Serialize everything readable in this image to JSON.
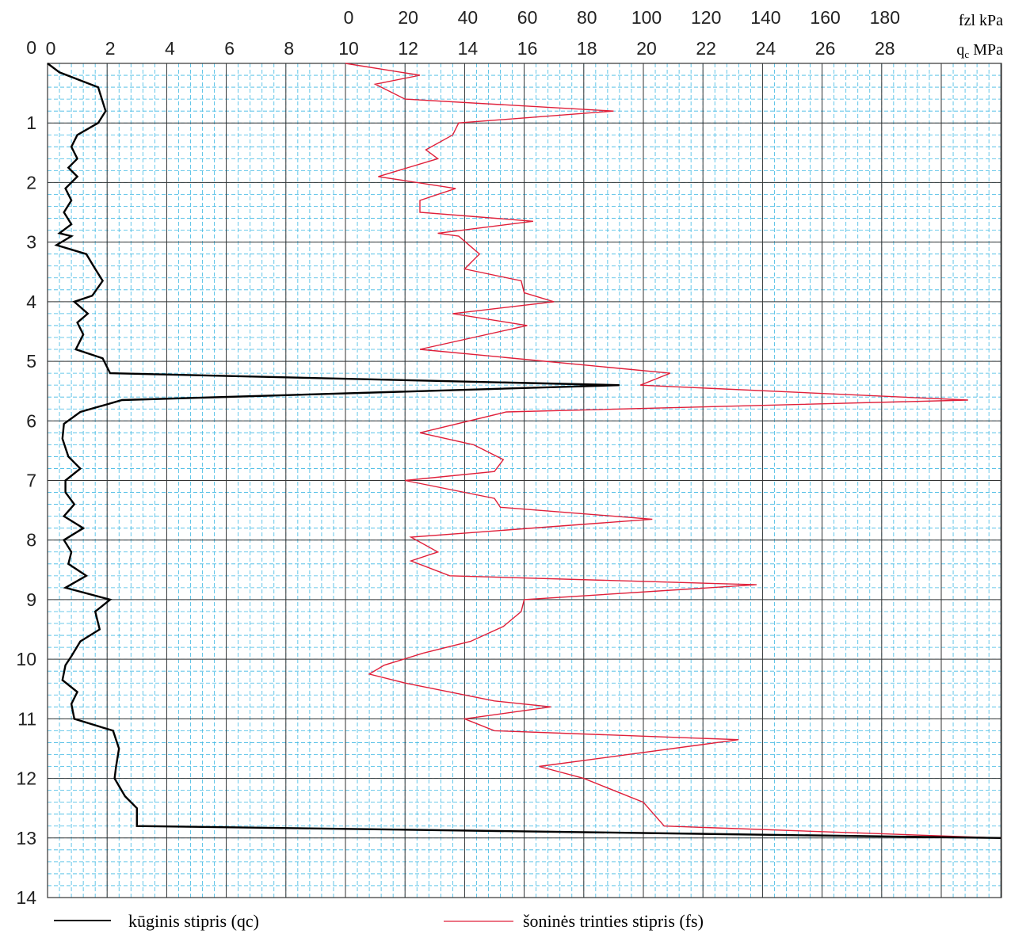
{
  "chart_data": {
    "type": "line",
    "units": {
      "fs": "fzl kPa",
      "qc_main": "q",
      "qc_sub": "c",
      "qc_tail": " MPa"
    },
    "axes": {
      "depth": {
        "ticks": [
          "0",
          "1",
          "2",
          "3",
          "4",
          "5",
          "6",
          "7",
          "8",
          "9",
          "10",
          "11",
          "12",
          "13",
          "14"
        ],
        "range": [
          0,
          14
        ]
      },
      "qc": {
        "ticks": [
          "0",
          "2",
          "4",
          "6",
          "8",
          "10",
          "12",
          "14",
          "16",
          "18",
          "20",
          "22",
          "24",
          "26",
          "28"
        ],
        "range": [
          0,
          32
        ]
      },
      "fs": {
        "ticks": [
          "0",
          "20",
          "40",
          "60",
          "80",
          "100",
          "120",
          "140",
          "160",
          "180"
        ],
        "range": [
          0,
          220
        ],
        "offset_in_qc": 10
      }
    },
    "grid": true,
    "series": [
      {
        "name": "kūginis stipris (qc)",
        "axis": "qc",
        "color": "#000000",
        "points": [
          [
            0.0,
            0.0
          ],
          [
            0.4,
            0.15
          ],
          [
            1.7,
            0.4
          ],
          [
            1.95,
            0.8
          ],
          [
            1.7,
            1.0
          ],
          [
            1.0,
            1.2
          ],
          [
            0.8,
            1.4
          ],
          [
            1.0,
            1.6
          ],
          [
            0.7,
            1.75
          ],
          [
            1.0,
            1.9
          ],
          [
            0.6,
            2.1
          ],
          [
            0.8,
            2.3
          ],
          [
            0.55,
            2.5
          ],
          [
            0.8,
            2.7
          ],
          [
            0.4,
            2.85
          ],
          [
            0.8,
            2.9
          ],
          [
            0.3,
            3.05
          ],
          [
            1.3,
            3.2
          ],
          [
            1.6,
            3.45
          ],
          [
            1.85,
            3.65
          ],
          [
            1.5,
            3.9
          ],
          [
            0.9,
            4.0
          ],
          [
            1.35,
            4.2
          ],
          [
            1.0,
            4.35
          ],
          [
            1.2,
            4.55
          ],
          [
            0.95,
            4.8
          ],
          [
            1.85,
            4.95
          ],
          [
            2.1,
            5.2
          ],
          [
            19.2,
            5.4
          ],
          [
            2.5,
            5.65
          ],
          [
            1.1,
            5.85
          ],
          [
            0.55,
            6.05
          ],
          [
            0.5,
            6.3
          ],
          [
            0.7,
            6.6
          ],
          [
            1.1,
            6.8
          ],
          [
            0.6,
            7.0
          ],
          [
            0.6,
            7.2
          ],
          [
            0.9,
            7.4
          ],
          [
            0.55,
            7.6
          ],
          [
            1.2,
            7.8
          ],
          [
            0.55,
            8.0
          ],
          [
            0.8,
            8.2
          ],
          [
            0.7,
            8.4
          ],
          [
            1.3,
            8.6
          ],
          [
            0.6,
            8.8
          ],
          [
            2.1,
            9.0
          ],
          [
            1.6,
            9.2
          ],
          [
            1.75,
            9.5
          ],
          [
            1.1,
            9.7
          ],
          [
            0.8,
            9.95
          ],
          [
            0.6,
            10.1
          ],
          [
            0.5,
            10.35
          ],
          [
            1.0,
            10.55
          ],
          [
            0.8,
            10.75
          ],
          [
            0.9,
            11.0
          ],
          [
            2.2,
            11.2
          ],
          [
            2.4,
            11.5
          ],
          [
            2.3,
            11.8
          ],
          [
            2.25,
            12.0
          ],
          [
            2.6,
            12.3
          ],
          [
            3.0,
            12.5
          ],
          [
            3.0,
            12.8
          ],
          [
            32.0,
            13.0
          ]
        ]
      },
      {
        "name": "šoninės trinties stipris (fs)",
        "axis": "fs",
        "color": "#e0203a",
        "points": [
          [
            0,
            0.0
          ],
          [
            25,
            0.2
          ],
          [
            10,
            0.35
          ],
          [
            20,
            0.6
          ],
          [
            90,
            0.8
          ],
          [
            38,
            1.0
          ],
          [
            36,
            1.2
          ],
          [
            27,
            1.45
          ],
          [
            31,
            1.6
          ],
          [
            11,
            1.9
          ],
          [
            37,
            2.1
          ],
          [
            25,
            2.3
          ],
          [
            25,
            2.5
          ],
          [
            63,
            2.65
          ],
          [
            31,
            2.85
          ],
          [
            38,
            2.9
          ],
          [
            45,
            3.2
          ],
          [
            40,
            3.45
          ],
          [
            59,
            3.65
          ],
          [
            60,
            3.85
          ],
          [
            70,
            4.0
          ],
          [
            36,
            4.2
          ],
          [
            61,
            4.4
          ],
          [
            25,
            4.8
          ],
          [
            109,
            5.2
          ],
          [
            99,
            5.4
          ],
          [
            209,
            5.65
          ],
          [
            54,
            5.85
          ],
          [
            25,
            6.2
          ],
          [
            43,
            6.4
          ],
          [
            53,
            6.65
          ],
          [
            50,
            6.85
          ],
          [
            20,
            7.0
          ],
          [
            50,
            7.3
          ],
          [
            52,
            7.45
          ],
          [
            103,
            7.65
          ],
          [
            22,
            7.95
          ],
          [
            31,
            8.2
          ],
          [
            22,
            8.35
          ],
          [
            35,
            8.6
          ],
          [
            138,
            8.75
          ],
          [
            60,
            9.0
          ],
          [
            59,
            9.2
          ],
          [
            53,
            9.45
          ],
          [
            42,
            9.7
          ],
          [
            26,
            9.9
          ],
          [
            13,
            10.1
          ],
          [
            8,
            10.25
          ],
          [
            20,
            10.4
          ],
          [
            50,
            10.7
          ],
          [
            69,
            10.8
          ],
          [
            40,
            11.0
          ],
          [
            50,
            11.2
          ],
          [
            132,
            11.35
          ],
          [
            65,
            11.8
          ],
          [
            80,
            12.0
          ],
          [
            100,
            12.4
          ],
          [
            107,
            12.8
          ],
          [
            220,
            13.0
          ]
        ]
      }
    ],
    "legend": {
      "position": "bottom",
      "qc_label": "kūginis stipris (qc)",
      "fs_label": "šoninės trinties stipris (fs)"
    }
  }
}
